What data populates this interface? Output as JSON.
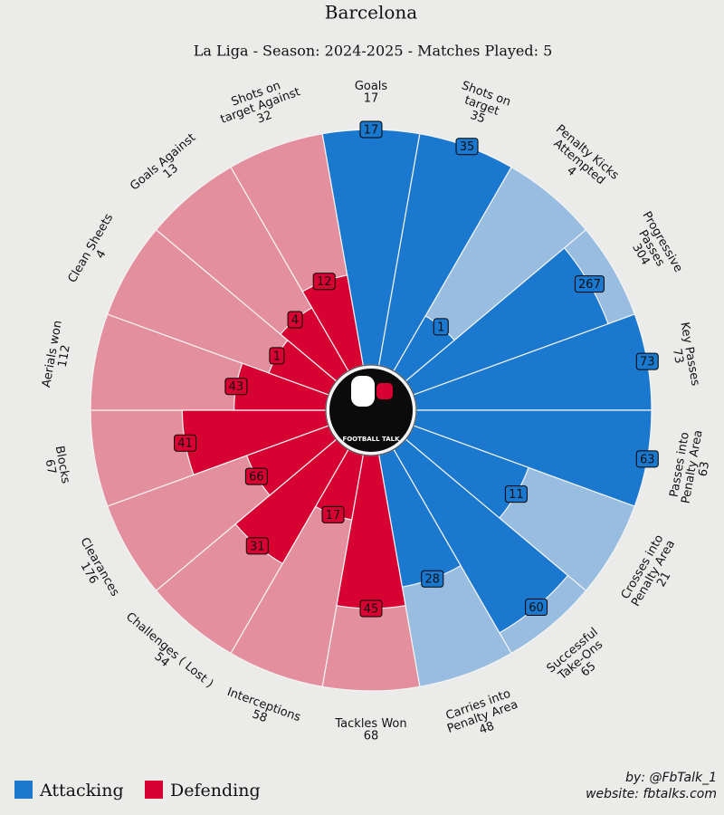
{
  "chart_data": {
    "type": "pizza",
    "title": "Barcelona",
    "subtitle": "La Liga - Season: 2024-2025 - Matches Played: 5",
    "categories": [
      "Goals",
      "Shots on\ntarget",
      "Penalty Kicks\nAttempted",
      "Progressive\nPasses",
      "Key Passes",
      "Passes into\nPenalty Area",
      "Crosses into\nPenalty Area",
      "Successful\nTake-Ons",
      "Carries into\nPenalty Area",
      "Tackles Won",
      "Interceptions",
      "Challenges ( Lost )",
      "Clearances",
      "Blocks",
      "Aerials won",
      "Clean Sheets",
      "Goals Against",
      "Shots on\ntarget Against"
    ],
    "season_values": [
      17,
      35,
      4,
      304,
      73,
      63,
      21,
      65,
      48,
      68,
      58,
      54,
      176,
      67,
      112,
      4,
      13,
      32
    ],
    "bar_labels": [
      17,
      35,
      1,
      267,
      73,
      63,
      11,
      60,
      28,
      45,
      17,
      31,
      66,
      41,
      43,
      1,
      4,
      12
    ],
    "values": [
      100,
      100,
      27,
      88,
      100,
      100,
      52,
      90,
      57,
      65,
      28,
      56,
      37,
      61,
      39,
      27,
      31,
      39
    ],
    "rlim": [
      0,
      100
    ],
    "category_groups": [
      0,
      0,
      0,
      0,
      0,
      0,
      0,
      0,
      0,
      1,
      1,
      1,
      1,
      1,
      1,
      1,
      1,
      1
    ],
    "groups": [
      {
        "name": "Attacking",
        "color": "#1a78cf",
        "light_color": "#98bde0"
      },
      {
        "name": "Defending",
        "color": "#d70232",
        "light_color": "#e48f9d"
      }
    ],
    "logo_text": "FOOTBALL TALK",
    "credit": "by: @FbTalk_1",
    "website": "website: fbtalks.com"
  }
}
